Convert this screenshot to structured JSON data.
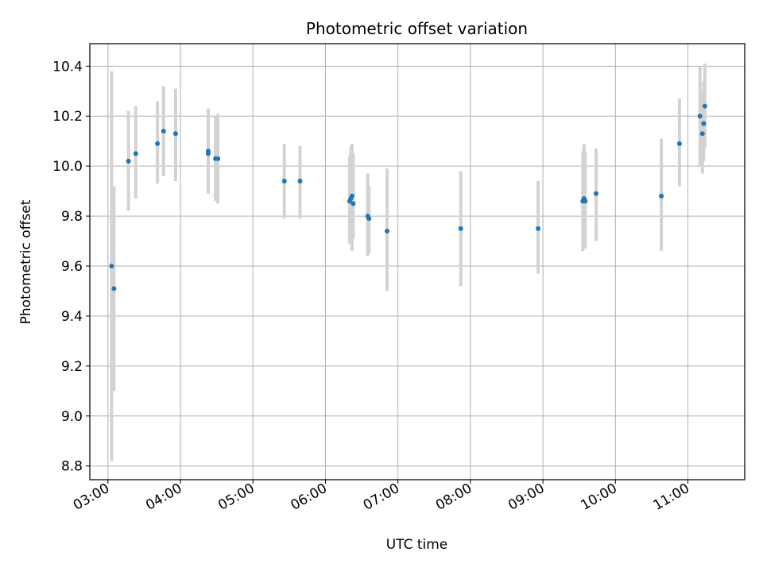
{
  "chart_data": {
    "type": "scatter",
    "title": "Photometric offset variation",
    "xlabel": "UTC time",
    "ylabel": "Photometric offset",
    "x_unit": "UTC time (HH:MM)",
    "xlim": [
      "02:45",
      "11:47"
    ],
    "ylim": [
      8.745,
      10.49
    ],
    "x_ticks": [
      "03:00",
      "04:00",
      "05:00",
      "06:00",
      "07:00",
      "08:00",
      "09:00",
      "10:00",
      "11:00"
    ],
    "y_ticks": [
      8.8,
      9.0,
      9.2,
      9.4,
      9.6,
      9.8,
      10.0,
      10.2,
      10.4
    ],
    "y_tick_labels": [
      "8.8",
      "9.0",
      "9.2",
      "9.4",
      "9.6",
      "9.8",
      "10.0",
      "10.2",
      "10.4"
    ],
    "grid": true,
    "x_tick_rotation": "30 degrees",
    "point_color": "#1f77b4",
    "errorbar_color": "#d3d3d3",
    "points": [
      {
        "x": "03:03",
        "y": 9.6,
        "ylow": 8.82,
        "yhigh": 10.38
      },
      {
        "x": "03:05",
        "y": 9.51,
        "ylow": 9.1,
        "yhigh": 9.92
      },
      {
        "x": "03:17",
        "y": 10.02,
        "ylow": 9.82,
        "yhigh": 10.22
      },
      {
        "x": "03:23",
        "y": 10.05,
        "ylow": 9.87,
        "yhigh": 10.24
      },
      {
        "x": "03:41",
        "y": 10.09,
        "ylow": 9.93,
        "yhigh": 10.26
      },
      {
        "x": "03:46",
        "y": 10.14,
        "ylow": 9.96,
        "yhigh": 10.32
      },
      {
        "x": "03:56",
        "y": 10.13,
        "ylow": 9.94,
        "yhigh": 10.31
      },
      {
        "x": "04:23",
        "y": 10.06,
        "ylow": 9.89,
        "yhigh": 10.23
      },
      {
        "x": "04:23",
        "y": 10.05,
        "ylow": 9.9,
        "yhigh": 10.2
      },
      {
        "x": "04:29",
        "y": 10.03,
        "ylow": 9.86,
        "yhigh": 10.2
      },
      {
        "x": "04:31",
        "y": 10.03,
        "ylow": 9.85,
        "yhigh": 10.21
      },
      {
        "x": "05:26",
        "y": 9.94,
        "ylow": 9.79,
        "yhigh": 10.09
      },
      {
        "x": "05:39",
        "y": 9.94,
        "ylow": 9.79,
        "yhigh": 10.08
      },
      {
        "x": "06:20",
        "y": 9.86,
        "ylow": 9.69,
        "yhigh": 10.04
      },
      {
        "x": "06:21",
        "y": 9.87,
        "ylow": 9.7,
        "yhigh": 10.08
      },
      {
        "x": "06:22",
        "y": 9.88,
        "ylow": 9.66,
        "yhigh": 10.09
      },
      {
        "x": "06:23",
        "y": 9.85,
        "ylow": 9.71,
        "yhigh": 10.05
      },
      {
        "x": "06:35",
        "y": 9.8,
        "ylow": 9.64,
        "yhigh": 9.97
      },
      {
        "x": "06:36",
        "y": 9.79,
        "ylow": 9.65,
        "yhigh": 9.92
      },
      {
        "x": "06:51",
        "y": 9.74,
        "ylow": 9.5,
        "yhigh": 9.99
      },
      {
        "x": "07:52",
        "y": 9.75,
        "ylow": 9.52,
        "yhigh": 9.98
      },
      {
        "x": "08:56",
        "y": 9.75,
        "ylow": 9.57,
        "yhigh": 9.94
      },
      {
        "x": "09:33",
        "y": 9.86,
        "ylow": 9.66,
        "yhigh": 10.06
      },
      {
        "x": "09:34",
        "y": 9.87,
        "ylow": 9.67,
        "yhigh": 10.09
      },
      {
        "x": "09:35",
        "y": 9.86,
        "ylow": 9.67,
        "yhigh": 10.06
      },
      {
        "x": "09:44",
        "y": 9.89,
        "ylow": 9.7,
        "yhigh": 10.07
      },
      {
        "x": "10:38",
        "y": 9.88,
        "ylow": 9.66,
        "yhigh": 10.11
      },
      {
        "x": "10:53",
        "y": 10.09,
        "ylow": 9.92,
        "yhigh": 10.27
      },
      {
        "x": "11:10",
        "y": 10.2,
        "ylow": 10.0,
        "yhigh": 10.4
      },
      {
        "x": "11:12",
        "y": 10.13,
        "ylow": 9.97,
        "yhigh": 10.3
      },
      {
        "x": "11:13",
        "y": 10.17,
        "ylow": 10.02,
        "yhigh": 10.34
      },
      {
        "x": "11:14",
        "y": 10.24,
        "ylow": 10.07,
        "yhigh": 10.41
      }
    ]
  }
}
